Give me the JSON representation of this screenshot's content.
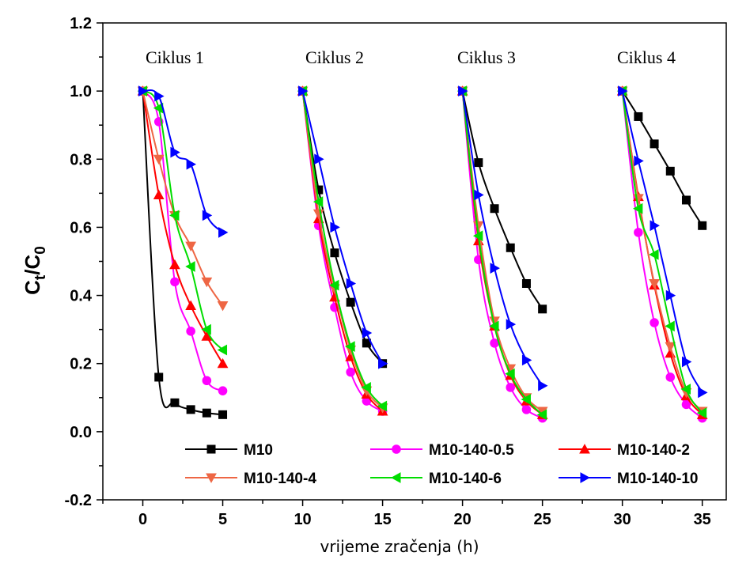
{
  "chart_data": {
    "type": "line",
    "title": "",
    "xlabel": "vrijeme zračenja (h)",
    "ylabel_main": "C",
    "ylabel_sub1": "t",
    "ylabel_sep": "/C",
    "ylabel_sub2": "0",
    "xlim": [
      -2.5,
      36.5
    ],
    "ylim": [
      -0.2,
      1.2
    ],
    "x_ticks": [
      0,
      5,
      10,
      15,
      20,
      25,
      30,
      35
    ],
    "y_ticks": [
      -0.2,
      0.0,
      0.2,
      0.4,
      0.6,
      0.8,
      1.0,
      1.2
    ],
    "y_tick_labels": [
      "-0.2",
      "0.0",
      "0.2",
      "0.4",
      "0.6",
      "0.8",
      "1.0",
      "1.2"
    ],
    "grid": false,
    "legend_position": "bottom",
    "cycle_labels": [
      {
        "text": "Ciklus 1",
        "x": 2.0
      },
      {
        "text": "Ciklus 2",
        "x": 12.0
      },
      {
        "text": "Ciklus 3",
        "x": 21.5
      },
      {
        "text": "Ciklus 4",
        "x": 31.5
      }
    ],
    "series": [
      {
        "name": "M10",
        "color": "#000000",
        "marker": "square",
        "segments": [
          {
            "x": [
              0,
              1,
              2,
              3,
              4,
              5
            ],
            "y": [
              1.0,
              0.16,
              0.085,
              0.065,
              0.055,
              0.05
            ]
          },
          {
            "x": [
              10,
              11,
              12,
              13,
              14,
              15
            ],
            "y": [
              1.0,
              0.71,
              0.525,
              0.38,
              0.26,
              0.2
            ]
          },
          {
            "x": [
              20,
              21,
              22,
              23,
              24,
              25
            ],
            "y": [
              1.0,
              0.79,
              0.655,
              0.54,
              0.435,
              0.36
            ]
          },
          {
            "x": [
              30,
              31,
              32,
              33,
              34,
              35
            ],
            "y": [
              1.0,
              0.925,
              0.845,
              0.765,
              0.68,
              0.605
            ]
          }
        ]
      },
      {
        "name": "M10-140-0.5",
        "color": "#ff00ff",
        "marker": "circle",
        "segments": [
          {
            "x": [
              0,
              1,
              2,
              3,
              4,
              5
            ],
            "y": [
              1.0,
              0.91,
              0.44,
              0.295,
              0.15,
              0.12
            ]
          },
          {
            "x": [
              10,
              11,
              12,
              13,
              14,
              15
            ],
            "y": [
              1.0,
              0.605,
              0.365,
              0.175,
              0.09,
              0.06
            ]
          },
          {
            "x": [
              20,
              21,
              22,
              23,
              24,
              25
            ],
            "y": [
              1.0,
              0.505,
              0.26,
              0.13,
              0.065,
              0.04
            ]
          },
          {
            "x": [
              30,
              31,
              32,
              33,
              34,
              35
            ],
            "y": [
              1.0,
              0.585,
              0.32,
              0.16,
              0.08,
              0.04
            ]
          }
        ]
      },
      {
        "name": "M10-140-2",
        "color": "#ff0000",
        "marker": "triangle-up",
        "segments": [
          {
            "x": [
              0,
              1,
              2,
              3,
              4,
              5
            ],
            "y": [
              1.0,
              0.695,
              0.49,
              0.37,
              0.28,
              0.2
            ]
          },
          {
            "x": [
              10,
              11,
              12,
              13,
              14,
              15
            ],
            "y": [
              1.0,
              0.625,
              0.395,
              0.22,
              0.11,
              0.06
            ]
          },
          {
            "x": [
              20,
              21,
              22,
              23,
              24,
              25
            ],
            "y": [
              1.0,
              0.56,
              0.31,
              0.165,
              0.09,
              0.05
            ]
          },
          {
            "x": [
              30,
              31,
              32,
              33,
              34,
              35
            ],
            "y": [
              1.0,
              0.69,
              0.43,
              0.23,
              0.105,
              0.05
            ]
          }
        ]
      },
      {
        "name": "M10-140-4",
        "color": "#ee6644",
        "marker": "triangle-down",
        "segments": [
          {
            "x": [
              0,
              1,
              2,
              3,
              4,
              5
            ],
            "y": [
              1.0,
              0.8,
              0.635,
              0.545,
              0.44,
              0.37
            ]
          },
          {
            "x": [
              10,
              11,
              12,
              13,
              14,
              15
            ],
            "y": [
              1.0,
              0.64,
              0.42,
              0.24,
              0.12,
              0.07
            ]
          },
          {
            "x": [
              20,
              21,
              22,
              23,
              24,
              25
            ],
            "y": [
              1.0,
              0.605,
              0.325,
              0.185,
              0.1,
              0.06
            ]
          },
          {
            "x": [
              30,
              31,
              32,
              33,
              34,
              35
            ],
            "y": [
              1.0,
              0.685,
              0.435,
              0.25,
              0.115,
              0.06
            ]
          }
        ]
      },
      {
        "name": "M10-140-6",
        "color": "#00dd00",
        "marker": "triangle-left",
        "segments": [
          {
            "x": [
              0,
              1,
              2,
              3,
              4,
              5
            ],
            "y": [
              1.0,
              0.95,
              0.635,
              0.485,
              0.3,
              0.24
            ]
          },
          {
            "x": [
              10,
              11,
              12,
              13,
              14,
              15
            ],
            "y": [
              1.0,
              0.675,
              0.43,
              0.25,
              0.13,
              0.075
            ]
          },
          {
            "x": [
              20,
              21,
              22,
              23,
              24,
              25
            ],
            "y": [
              1.0,
              0.575,
              0.31,
              0.17,
              0.095,
              0.05
            ]
          },
          {
            "x": [
              30,
              31,
              32,
              33,
              34,
              35
            ],
            "y": [
              1.0,
              0.655,
              0.52,
              0.31,
              0.125,
              0.055
            ]
          }
        ]
      },
      {
        "name": "M10-140-10",
        "color": "#0000ff",
        "marker": "triangle-right",
        "segments": [
          {
            "x": [
              0,
              1,
              2,
              3,
              4,
              5
            ],
            "y": [
              1.0,
              0.985,
              0.82,
              0.785,
              0.635,
              0.585
            ]
          },
          {
            "x": [
              10,
              11,
              12,
              13,
              14,
              15
            ],
            "y": [
              1.0,
              0.8,
              0.6,
              0.435,
              0.29,
              0.2
            ]
          },
          {
            "x": [
              20,
              21,
              22,
              23,
              24,
              25
            ],
            "y": [
              1.0,
              0.695,
              0.48,
              0.315,
              0.21,
              0.135
            ]
          },
          {
            "x": [
              30,
              31,
              32,
              33,
              34,
              35
            ],
            "y": [
              1.0,
              0.795,
              0.605,
              0.4,
              0.205,
              0.115
            ]
          }
        ]
      }
    ]
  }
}
